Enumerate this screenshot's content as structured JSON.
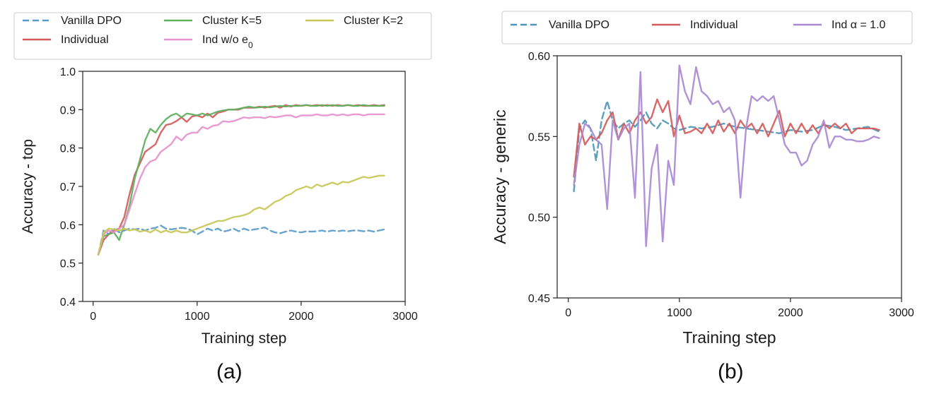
{
  "chart_data": [
    {
      "type": "line",
      "caption": "(a)",
      "xlabel": "Training step",
      "ylabel": "Accuracy - top",
      "xlim": [
        -100,
        3000
      ],
      "ylim": [
        0.4,
        1.0
      ],
      "xticks": [
        0,
        1000,
        2000,
        3000
      ],
      "xtick_labels": [
        "0",
        "1000",
        "2000",
        "3000"
      ],
      "yticks": [
        0.4,
        0.5,
        0.6,
        0.7,
        0.8,
        0.9,
        1.0
      ],
      "ytick_labels": [
        "0.4",
        "0.5",
        "0.6",
        "0.7",
        "0.8",
        "0.9",
        "1.0"
      ],
      "legend": {
        "placement": "above",
        "columns": 3,
        "items": [
          {
            "series": 0,
            "label": "Vanilla DPO"
          },
          {
            "series": 1,
            "label": "Individual"
          },
          {
            "series": 2,
            "label": "Cluster K=5"
          },
          {
            "series": 3,
            "label": "Ind w/o e",
            "sub": "0"
          },
          {
            "series": 4,
            "label": "Cluster K=2"
          }
        ]
      },
      "series": [
        {
          "name": "Vanilla DPO",
          "color": "#5a9cc8",
          "dash": true,
          "x": [
            50,
            100,
            150,
            200,
            250,
            300,
            350,
            400,
            450,
            500,
            550,
            600,
            650,
            700,
            750,
            800,
            850,
            900,
            950,
            1000,
            1050,
            1100,
            1150,
            1200,
            1250,
            1300,
            1350,
            1400,
            1450,
            1500,
            1550,
            1600,
            1650,
            1700,
            1750,
            1800,
            1850,
            1900,
            1950,
            2000,
            2050,
            2100,
            2150,
            2200,
            2250,
            2300,
            2350,
            2400,
            2450,
            2500,
            2550,
            2600,
            2650,
            2700,
            2750,
            2800
          ],
          "y": [
            0.522,
            0.585,
            0.575,
            0.59,
            0.58,
            0.585,
            0.59,
            0.588,
            0.59,
            0.585,
            0.59,
            0.592,
            0.598,
            0.59,
            0.588,
            0.59,
            0.592,
            0.59,
            0.585,
            0.575,
            0.582,
            0.59,
            0.585,
            0.59,
            0.582,
            0.585,
            0.59,
            0.583,
            0.59,
            0.585,
            0.588,
            0.59,
            0.593,
            0.585,
            0.58,
            0.578,
            0.582,
            0.585,
            0.582,
            0.58,
            0.583,
            0.582,
            0.583,
            0.585,
            0.582,
            0.585,
            0.583,
            0.585,
            0.583,
            0.585,
            0.585,
            0.583,
            0.585,
            0.582,
            0.585,
            0.588
          ]
        },
        {
          "name": "Individual",
          "color": "#d45b5b",
          "dash": false,
          "x": [
            50,
            100,
            150,
            200,
            250,
            300,
            350,
            400,
            450,
            500,
            550,
            600,
            650,
            700,
            750,
            800,
            850,
            900,
            950,
            1000,
            1050,
            1100,
            1150,
            1200,
            1250,
            1300,
            1350,
            1400,
            1450,
            1500,
            1550,
            1600,
            1650,
            1700,
            1750,
            1800,
            1850,
            1900,
            1950,
            2000,
            2050,
            2100,
            2150,
            2200,
            2250,
            2300,
            2350,
            2400,
            2450,
            2500,
            2550,
            2600,
            2650,
            2700,
            2750,
            2800
          ],
          "y": [
            0.522,
            0.56,
            0.575,
            0.585,
            0.59,
            0.62,
            0.68,
            0.73,
            0.76,
            0.79,
            0.8,
            0.81,
            0.84,
            0.86,
            0.863,
            0.87,
            0.88,
            0.868,
            0.882,
            0.885,
            0.88,
            0.89,
            0.88,
            0.892,
            0.895,
            0.9,
            0.9,
            0.9,
            0.905,
            0.905,
            0.905,
            0.908,
            0.905,
            0.908,
            0.91,
            0.905,
            0.912,
            0.908,
            0.912,
            0.91,
            0.912,
            0.91,
            0.912,
            0.91,
            0.912,
            0.91,
            0.912,
            0.91,
            0.912,
            0.91,
            0.912,
            0.91,
            0.91,
            0.912,
            0.91,
            0.912
          ]
        },
        {
          "name": "Cluster K=5",
          "color": "#5fb05f",
          "dash": false,
          "x": [
            50,
            100,
            150,
            200,
            250,
            300,
            350,
            400,
            450,
            500,
            550,
            600,
            650,
            700,
            750,
            800,
            850,
            900,
            950,
            1000,
            1050,
            1100,
            1150,
            1200,
            1250,
            1300,
            1350,
            1400,
            1450,
            1500,
            1550,
            1600,
            1650,
            1700,
            1750,
            1800,
            1850,
            1900,
            1950,
            2000,
            2050,
            2100,
            2150,
            2200,
            2250,
            2300,
            2350,
            2400,
            2450,
            2500,
            2550,
            2600,
            2650,
            2700,
            2750,
            2800
          ],
          "y": [
            0.522,
            0.57,
            0.575,
            0.58,
            0.56,
            0.6,
            0.65,
            0.72,
            0.77,
            0.82,
            0.85,
            0.84,
            0.86,
            0.875,
            0.885,
            0.89,
            0.88,
            0.89,
            0.888,
            0.885,
            0.89,
            0.885,
            0.89,
            0.895,
            0.898,
            0.9,
            0.9,
            0.902,
            0.905,
            0.908,
            0.905,
            0.906,
            0.908,
            0.906,
            0.908,
            0.91,
            0.908,
            0.91,
            0.91,
            0.91,
            0.912,
            0.91,
            0.91,
            0.912,
            0.91,
            0.912,
            0.91,
            0.91,
            0.912,
            0.91,
            0.91,
            0.912,
            0.91,
            0.91,
            0.91,
            0.91
          ]
        },
        {
          "name": "Ind w/o e0",
          "color": "#e592cc",
          "dash": false,
          "x": [
            50,
            100,
            150,
            200,
            250,
            300,
            350,
            400,
            450,
            500,
            550,
            600,
            650,
            700,
            750,
            800,
            850,
            900,
            950,
            1000,
            1050,
            1100,
            1150,
            1200,
            1250,
            1300,
            1350,
            1400,
            1450,
            1500,
            1550,
            1600,
            1650,
            1700,
            1750,
            1800,
            1850,
            1900,
            1950,
            2000,
            2050,
            2100,
            2150,
            2200,
            2250,
            2300,
            2350,
            2400,
            2450,
            2500,
            2550,
            2600,
            2650,
            2700,
            2750,
            2800
          ],
          "y": [
            0.522,
            0.575,
            0.585,
            0.58,
            0.59,
            0.6,
            0.64,
            0.68,
            0.72,
            0.75,
            0.765,
            0.77,
            0.79,
            0.8,
            0.81,
            0.83,
            0.82,
            0.835,
            0.84,
            0.84,
            0.855,
            0.85,
            0.858,
            0.86,
            0.87,
            0.868,
            0.87,
            0.875,
            0.88,
            0.878,
            0.88,
            0.88,
            0.878,
            0.882,
            0.88,
            0.882,
            0.885,
            0.885,
            0.88,
            0.885,
            0.885,
            0.885,
            0.888,
            0.885,
            0.885,
            0.888,
            0.885,
            0.888,
            0.885,
            0.888,
            0.888,
            0.885,
            0.888,
            0.888,
            0.888,
            0.888
          ]
        },
        {
          "name": "Cluster K=2",
          "color": "#c8c858",
          "dash": false,
          "x": [
            50,
            100,
            150,
            200,
            250,
            300,
            350,
            400,
            450,
            500,
            550,
            600,
            650,
            700,
            750,
            800,
            850,
            900,
            950,
            1000,
            1050,
            1100,
            1150,
            1200,
            1250,
            1300,
            1350,
            1400,
            1450,
            1500,
            1550,
            1600,
            1650,
            1700,
            1750,
            1800,
            1850,
            1900,
            1950,
            2000,
            2050,
            2100,
            2150,
            2200,
            2250,
            2300,
            2350,
            2400,
            2450,
            2500,
            2550,
            2600,
            2650,
            2700,
            2750,
            2800
          ],
          "y": [
            0.522,
            0.58,
            0.59,
            0.588,
            0.585,
            0.59,
            0.585,
            0.588,
            0.582,
            0.585,
            0.58,
            0.588,
            0.58,
            0.585,
            0.58,
            0.585,
            0.58,
            0.58,
            0.585,
            0.59,
            0.595,
            0.6,
            0.605,
            0.61,
            0.61,
            0.615,
            0.62,
            0.622,
            0.625,
            0.63,
            0.64,
            0.645,
            0.64,
            0.65,
            0.66,
            0.665,
            0.675,
            0.68,
            0.69,
            0.695,
            0.7,
            0.695,
            0.705,
            0.7,
            0.705,
            0.71,
            0.705,
            0.712,
            0.71,
            0.715,
            0.72,
            0.725,
            0.722,
            0.725,
            0.728,
            0.728
          ]
        }
      ]
    },
    {
      "type": "line",
      "caption": "(b)",
      "xlabel": "Training step",
      "ylabel": "Accuracy - generic",
      "xlim": [
        -100,
        3000
      ],
      "ylim": [
        0.45,
        0.6
      ],
      "xticks": [
        0,
        1000,
        2000,
        3000
      ],
      "xtick_labels": [
        "0",
        "1000",
        "2000",
        "3000"
      ],
      "yticks": [
        0.45,
        0.5,
        0.55,
        0.6
      ],
      "ytick_labels": [
        "0.45",
        "0.50",
        "0.55",
        "0.60"
      ],
      "legend": {
        "placement": "above",
        "columns": 3,
        "items": [
          {
            "series": 0,
            "label": "Vanilla DPO"
          },
          {
            "series": 1,
            "label": "Individual"
          },
          {
            "series": 2,
            "label": "Ind α = 1.0"
          }
        ]
      },
      "series": [
        {
          "name": "Vanilla DPO",
          "color": "#4f96b8",
          "dash": true,
          "x": [
            50,
            100,
            150,
            200,
            250,
            300,
            350,
            400,
            450,
            500,
            550,
            600,
            650,
            700,
            750,
            800,
            850,
            900,
            950,
            1000,
            1100,
            1200,
            1300,
            1400,
            1500,
            1600,
            1700,
            1800,
            1900,
            2000,
            2100,
            2200,
            2300,
            2400,
            2500,
            2600,
            2700,
            2800
          ],
          "y": [
            0.516,
            0.555,
            0.56,
            0.555,
            0.535,
            0.56,
            0.572,
            0.56,
            0.555,
            0.558,
            0.56,
            0.556,
            0.56,
            0.565,
            0.558,
            0.555,
            0.56,
            0.558,
            0.555,
            0.554,
            0.556,
            0.555,
            0.556,
            0.558,
            0.556,
            0.555,
            0.554,
            0.553,
            0.552,
            0.554,
            0.553,
            0.554,
            0.557,
            0.556,
            0.554,
            0.555,
            0.556,
            0.553
          ]
        },
        {
          "name": "Individual",
          "color": "#d45b5b",
          "dash": false,
          "x": [
            50,
            100,
            150,
            200,
            250,
            300,
            350,
            400,
            450,
            500,
            550,
            600,
            650,
            700,
            750,
            800,
            850,
            900,
            950,
            1000,
            1050,
            1100,
            1150,
            1200,
            1250,
            1300,
            1350,
            1400,
            1450,
            1500,
            1550,
            1600,
            1650,
            1700,
            1750,
            1800,
            1850,
            1900,
            1950,
            2000,
            2050,
            2100,
            2150,
            2200,
            2250,
            2300,
            2350,
            2400,
            2450,
            2500,
            2550,
            2600,
            2650,
            2700,
            2750,
            2800
          ],
          "y": [
            0.525,
            0.558,
            0.545,
            0.55,
            0.548,
            0.552,
            0.56,
            0.565,
            0.548,
            0.558,
            0.552,
            0.56,
            0.565,
            0.558,
            0.562,
            0.573,
            0.565,
            0.572,
            0.55,
            0.563,
            0.552,
            0.553,
            0.555,
            0.552,
            0.558,
            0.552,
            0.56,
            0.553,
            0.558,
            0.552,
            0.56,
            0.555,
            0.558,
            0.552,
            0.558,
            0.55,
            0.558,
            0.566,
            0.55,
            0.558,
            0.552,
            0.558,
            0.552,
            0.557,
            0.552,
            0.558,
            0.555,
            0.558,
            0.555,
            0.558,
            0.552,
            0.555,
            0.555,
            0.555,
            0.555,
            0.554
          ]
        },
        {
          "name": "Ind α = 1.0",
          "color": "#a98ad2",
          "dash": false,
          "x": [
            50,
            100,
            150,
            200,
            250,
            300,
            350,
            400,
            450,
            500,
            550,
            600,
            650,
            700,
            750,
            800,
            850,
            900,
            950,
            1000,
            1050,
            1100,
            1150,
            1200,
            1250,
            1300,
            1350,
            1400,
            1450,
            1500,
            1550,
            1600,
            1650,
            1700,
            1750,
            1800,
            1850,
            1900,
            1950,
            2000,
            2050,
            2100,
            2150,
            2200,
            2250,
            2300,
            2350,
            2400,
            2450,
            2500,
            2550,
            2600,
            2650,
            2700,
            2750,
            2800
          ],
          "y": [
            0.52,
            0.545,
            0.558,
            0.555,
            0.548,
            0.545,
            0.505,
            0.56,
            0.548,
            0.555,
            0.558,
            0.512,
            0.59,
            0.482,
            0.53,
            0.545,
            0.485,
            0.535,
            0.52,
            0.594,
            0.578,
            0.57,
            0.593,
            0.578,
            0.575,
            0.57,
            0.572,
            0.565,
            0.568,
            0.56,
            0.512,
            0.555,
            0.575,
            0.572,
            0.575,
            0.572,
            0.575,
            0.56,
            0.545,
            0.54,
            0.54,
            0.532,
            0.535,
            0.545,
            0.55,
            0.56,
            0.543,
            0.55,
            0.55,
            0.548,
            0.548,
            0.547,
            0.547,
            0.548,
            0.55,
            0.549
          ]
        }
      ]
    }
  ]
}
